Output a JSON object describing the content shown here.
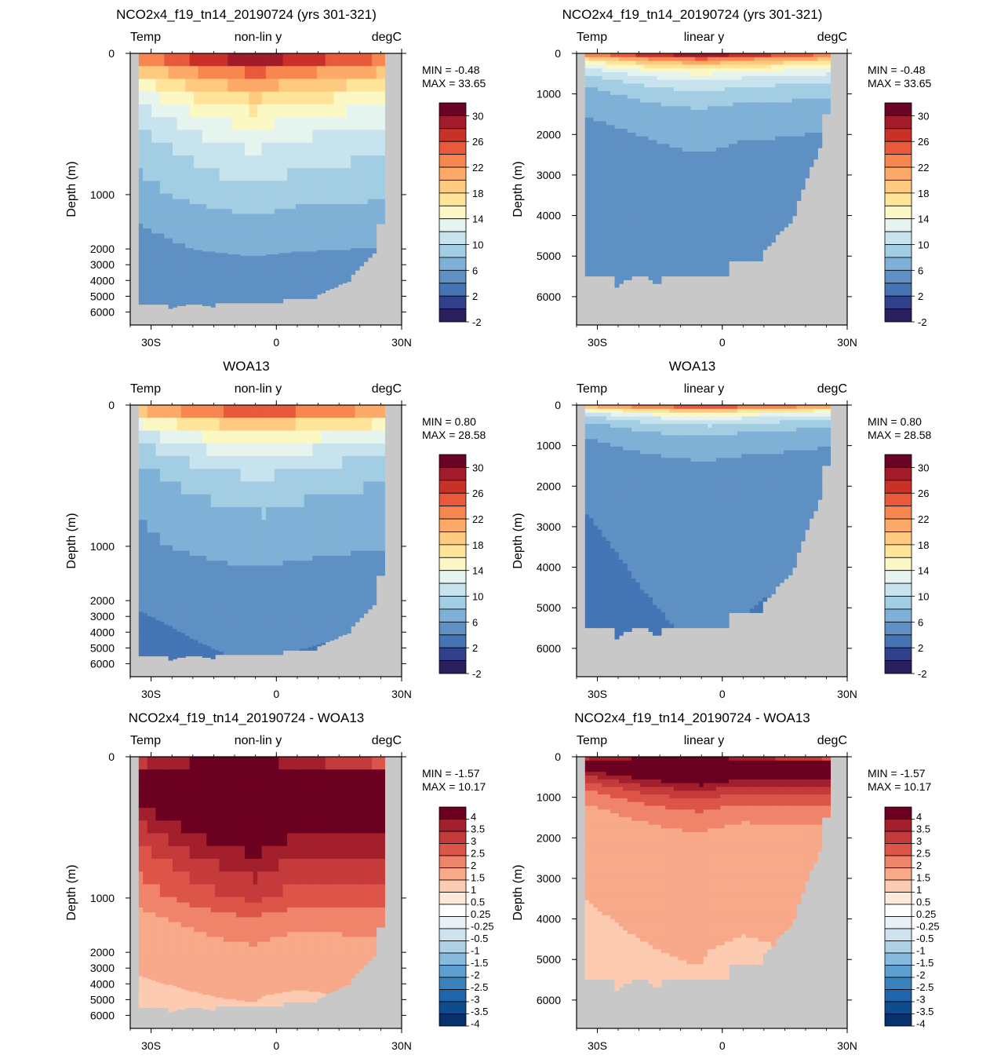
{
  "colors": {
    "land": "#c8c8c8",
    "frame": "#000000",
    "temp_palette": [
      "#2c1f5e",
      "#323f8a",
      "#4575b4",
      "#5f90c4",
      "#7fb0d5",
      "#a3cde2",
      "#c6e3ee",
      "#e6f4f0",
      "#fbf8c4",
      "#fee59a",
      "#fec980",
      "#fdaa68",
      "#f8864f",
      "#e9593c",
      "#c83028",
      "#a11b2b",
      "#6b0424"
    ],
    "diff_palette": [
      "#08306b",
      "#0f4b8f",
      "#2166ac",
      "#3a82be",
      "#5b9ecf",
      "#86bbdd",
      "#aed1e6",
      "#cfe3ef",
      "#e9f1f6",
      "#ffffff",
      "#fde8da",
      "#fccbb1",
      "#f8a98a",
      "#ef846a",
      "#dc5548",
      "#c53a3a",
      "#a31f2c",
      "#6b0020"
    ]
  },
  "panels": [
    {
      "title": "NCO2x4_f19_tn14_20190724 (yrs 301-321)",
      "left_label": "Temp",
      "center_label": "non-lin y",
      "right_label": "degC",
      "ylabel": "Depth (m)",
      "yticks": [
        "0",
        "1000",
        "2000",
        "3000",
        "4000",
        "5000",
        "6000"
      ],
      "xticks": [
        "30S",
        "0",
        "30N"
      ],
      "min_text": "MIN =  -0.48",
      "max_text": "MAX =  33.65"
    },
    {
      "title": "NCO2x4_f19_tn14_20190724 (yrs 301-321)",
      "left_label": "Temp",
      "center_label": "linear y",
      "right_label": "degC",
      "ylabel": "Depth (m)",
      "yticks": [
        "0",
        "1000",
        "2000",
        "3000",
        "4000",
        "5000",
        "6000"
      ],
      "xticks": [
        "30S",
        "0",
        "30N"
      ],
      "min_text": "MIN =  -0.48",
      "max_text": "MAX =  33.65"
    },
    {
      "title": "WOA13",
      "left_label": "Temp",
      "center_label": "non-lin y",
      "right_label": "degC",
      "ylabel": "Depth (m)",
      "yticks": [
        "0",
        "1000",
        "2000",
        "3000",
        "4000",
        "5000",
        "6000"
      ],
      "xticks": [
        "30S",
        "0",
        "30N"
      ],
      "min_text": "MIN =   0.80",
      "max_text": "MAX =  28.58"
    },
    {
      "title": "WOA13",
      "left_label": "Temp",
      "center_label": "linear y",
      "right_label": "degC",
      "ylabel": "Depth (m)",
      "yticks": [
        "0",
        "1000",
        "2000",
        "3000",
        "4000",
        "5000",
        "6000"
      ],
      "xticks": [
        "30S",
        "0",
        "30N"
      ],
      "min_text": "MIN =   0.80",
      "max_text": "MAX =  28.58"
    },
    {
      "title": "NCO2x4_f19_tn14_20190724 - WOA13",
      "left_label": "Temp",
      "center_label": "non-lin y",
      "right_label": "degC",
      "ylabel": "Depth (m)",
      "yticks": [
        "0",
        "1000",
        "2000",
        "3000",
        "4000",
        "5000",
        "6000"
      ],
      "xticks": [
        "30S",
        "0",
        "30N"
      ],
      "min_text": "MIN =  -1.57",
      "max_text": "MAX =  10.17"
    },
    {
      "title": "NCO2x4_f19_tn14_20190724 - WOA13",
      "left_label": "Temp",
      "center_label": "linear y",
      "right_label": "degC",
      "ylabel": "Depth (m)",
      "yticks": [
        "0",
        "1000",
        "2000",
        "3000",
        "4000",
        "5000",
        "6000"
      ],
      "xticks": [
        "30S",
        "0",
        "30N"
      ],
      "min_text": "MIN =  -1.57",
      "max_text": "MAX =  10.17"
    }
  ],
  "temp_colorbar_labels": [
    "30",
    "26",
    "22",
    "18",
    "14",
    "10",
    "6",
    "2",
    "-2"
  ],
  "diff_colorbar_labels": [
    "4",
    "3.5",
    "3",
    "2.5",
    "2",
    "1.5",
    "1",
    "0.5",
    "0.25",
    "-0.25",
    "-0.5",
    "-1",
    "-1.5",
    "-2",
    "-2.5",
    "-3",
    "-3.5",
    "-4"
  ],
  "chart_data": [
    {
      "type": "heatmap",
      "title": "NCO2x4_f19_tn14_20190724 (yrs 301-321)",
      "variable": "Temp",
      "units": "degC",
      "y_axis": "non-lin y",
      "xlabel": "",
      "ylabel": "Depth (m)",
      "xlim": [
        -35,
        30
      ],
      "ylim_depth_m": [
        0,
        6500
      ],
      "x_tick_labels": [
        "30S",
        "0",
        "30N"
      ],
      "y_tick_labels": [
        "0",
        "1000",
        "2000",
        "3000",
        "4000",
        "5000",
        "6000"
      ],
      "contour_levels": [
        -2,
        0,
        2,
        4,
        6,
        8,
        10,
        12,
        14,
        16,
        18,
        20,
        22,
        24,
        26,
        28,
        30
      ],
      "min": -0.48,
      "max": 33.65,
      "grid": false
    },
    {
      "type": "heatmap",
      "title": "NCO2x4_f19_tn14_20190724 (yrs 301-321)",
      "variable": "Temp",
      "units": "degC",
      "y_axis": "linear y",
      "xlabel": "",
      "ylabel": "Depth (m)",
      "xlim": [
        -35,
        30
      ],
      "ylim_depth_m": [
        0,
        6700
      ],
      "x_tick_labels": [
        "30S",
        "0",
        "30N"
      ],
      "y_tick_labels": [
        "0",
        "1000",
        "2000",
        "3000",
        "4000",
        "5000",
        "6000"
      ],
      "contour_levels": [
        -2,
        0,
        2,
        4,
        6,
        8,
        10,
        12,
        14,
        16,
        18,
        20,
        22,
        24,
        26,
        28,
        30
      ],
      "min": -0.48,
      "max": 33.65,
      "grid": false
    },
    {
      "type": "heatmap",
      "title": "WOA13",
      "variable": "Temp",
      "units": "degC",
      "y_axis": "non-lin y",
      "xlabel": "",
      "ylabel": "Depth (m)",
      "xlim": [
        -35,
        30
      ],
      "ylim_depth_m": [
        0,
        6500
      ],
      "x_tick_labels": [
        "30S",
        "0",
        "30N"
      ],
      "y_tick_labels": [
        "0",
        "1000",
        "2000",
        "3000",
        "4000",
        "5000",
        "6000"
      ],
      "contour_levels": [
        -2,
        0,
        2,
        4,
        6,
        8,
        10,
        12,
        14,
        16,
        18,
        20,
        22,
        24,
        26,
        28,
        30
      ],
      "min": 0.8,
      "max": 28.58,
      "grid": false
    },
    {
      "type": "heatmap",
      "title": "WOA13",
      "variable": "Temp",
      "units": "degC",
      "y_axis": "linear y",
      "xlabel": "",
      "ylabel": "Depth (m)",
      "xlim": [
        -35,
        30
      ],
      "ylim_depth_m": [
        0,
        6700
      ],
      "x_tick_labels": [
        "30S",
        "0",
        "30N"
      ],
      "y_tick_labels": [
        "0",
        "1000",
        "2000",
        "3000",
        "4000",
        "5000",
        "6000"
      ],
      "contour_levels": [
        -2,
        0,
        2,
        4,
        6,
        8,
        10,
        12,
        14,
        16,
        18,
        20,
        22,
        24,
        26,
        28,
        30
      ],
      "min": 0.8,
      "max": 28.58,
      "grid": false
    },
    {
      "type": "heatmap",
      "title": "NCO2x4_f19_tn14_20190724 - WOA13",
      "variable": "Temp",
      "units": "degC",
      "y_axis": "non-lin y",
      "xlabel": "",
      "ylabel": "Depth (m)",
      "xlim": [
        -35,
        30
      ],
      "ylim_depth_m": [
        0,
        6500
      ],
      "x_tick_labels": [
        "30S",
        "0",
        "30N"
      ],
      "y_tick_labels": [
        "0",
        "1000",
        "2000",
        "3000",
        "4000",
        "5000",
        "6000"
      ],
      "contour_levels": [
        -4,
        -3.5,
        -3,
        -2.5,
        -2,
        -1.5,
        -1,
        -0.5,
        -0.25,
        0.25,
        0.5,
        1,
        1.5,
        2,
        2.5,
        3,
        3.5,
        4
      ],
      "min": -1.57,
      "max": 10.17,
      "grid": false
    },
    {
      "type": "heatmap",
      "title": "NCO2x4_f19_tn14_20190724 - WOA13",
      "variable": "Temp",
      "units": "degC",
      "y_axis": "linear y",
      "xlabel": "",
      "ylabel": "Depth (m)",
      "xlim": [
        -35,
        30
      ],
      "ylim_depth_m": [
        0,
        6700
      ],
      "x_tick_labels": [
        "30S",
        "0",
        "30N"
      ],
      "y_tick_labels": [
        "0",
        "1000",
        "2000",
        "3000",
        "4000",
        "5000",
        "6000"
      ],
      "contour_levels": [
        -4,
        -3.5,
        -3,
        -2.5,
        -2,
        -1.5,
        -1,
        -0.5,
        -0.25,
        0.25,
        0.5,
        1,
        1.5,
        2,
        2.5,
        3,
        3.5,
        4
      ],
      "min": -1.57,
      "max": 10.17,
      "grid": false
    }
  ]
}
